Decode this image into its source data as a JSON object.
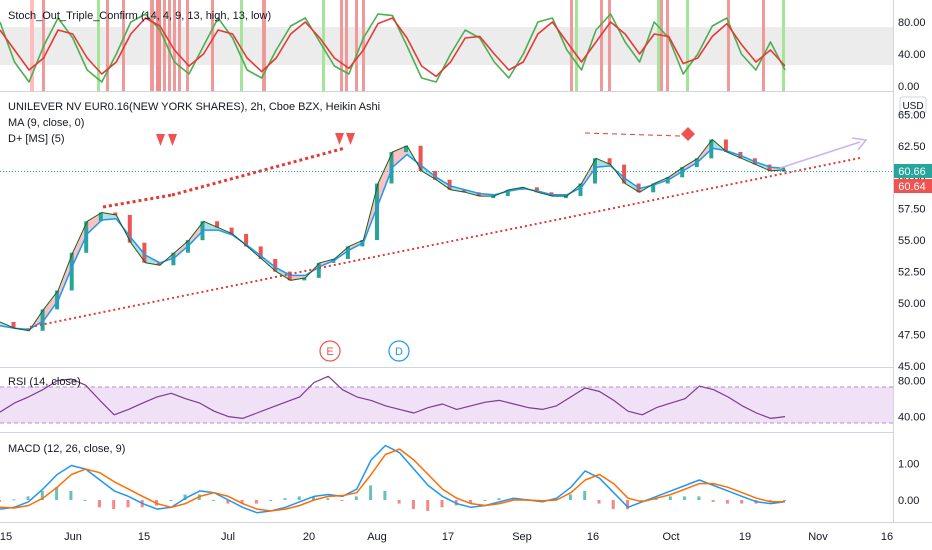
{
  "header": {
    "symbol_line": "UNILEVER NV EUR0.16(NEW YORK SHARES), 2h, Cboe BZX, Heikin Ashi",
    "currency": "USD"
  },
  "indicators": {
    "stoch": "Stoch_Out_Triple_Confirm (14, 4, 9, 13, high, 13, low)",
    "ma": "MA (9, close, 0)",
    "dplus": "D+ [MS] (5)",
    "rsi": "RSI (14, close)",
    "macd": "MACD (12, 26, close, 9)"
  },
  "markers": {
    "e": "E",
    "d": "D"
  },
  "colors": {
    "up": "#ef5350",
    "down": "#26a69a",
    "ma": "#2196f3",
    "stoch_k": "#4caf50",
    "stoch_d": "#e53935",
    "rsi": "#7e3b8f",
    "trend": "#e53935",
    "projection": "#c8b4f0",
    "last_price_bg": "#26a69a",
    "other_price_bg": "#ef5350"
  },
  "chart_data": [
    {
      "type": "line",
      "title": "Stoch_Out_Triple_Confirm (14, 4, 9, 13, high, 13, low)",
      "y_ticks": [
        "80.00",
        "40.00",
        "0.00"
      ],
      "ylim": [
        -5,
        100
      ],
      "series": [
        {
          "values": [
            80,
            30,
            5,
            50,
            85,
            60,
            20,
            5,
            40,
            80,
            90,
            70,
            30,
            15,
            50,
            85,
            60,
            20,
            10,
            45,
            75,
            85,
            55,
            25,
            15,
            60,
            90,
            88,
            50,
            10,
            5,
            40,
            70,
            60,
            30,
            10,
            40,
            80,
            85,
            45,
            20,
            70,
            90,
            55,
            30,
            80,
            60,
            15,
            40,
            75,
            85,
            40,
            20,
            55,
            20
          ]
        },
        {
          "values": [
            70,
            45,
            20,
            35,
            70,
            65,
            35,
            15,
            30,
            65,
            85,
            75,
            45,
            25,
            40,
            70,
            65,
            35,
            18,
            35,
            65,
            80,
            60,
            35,
            22,
            45,
            78,
            85,
            60,
            25,
            12,
            30,
            60,
            62,
            40,
            20,
            30,
            65,
            80,
            55,
            30,
            55,
            80,
            65,
            40,
            65,
            62,
            28,
            35,
            62,
            78,
            52,
            30,
            45,
            25
          ]
        }
      ]
    },
    {
      "type": "line",
      "title": "UNILEVER NV EUR0.16(NEW YORK SHARES), 2h, Cboe BZX, Heikin Ashi",
      "ylabel": "USD",
      "y_ticks": [
        "65.00",
        "62.50",
        "60.00",
        "57.50",
        "55.00",
        "52.50",
        "50.00",
        "47.50",
        "45.00"
      ],
      "ylim": [
        45,
        65.5
      ],
      "x_ticks": [
        "15",
        "Jun",
        "15",
        "Jul",
        "20",
        "Aug",
        "17",
        "Sep",
        "16",
        "Oct",
        "19",
        "Nov",
        "16"
      ],
      "series": [
        {
          "values": [
            48.5,
            48.0,
            47.8,
            49.5,
            51.0,
            54.0,
            56.5,
            57.2,
            57.0,
            54.8,
            53.2,
            53.0,
            54.0,
            55.0,
            56.5,
            56.0,
            55.5,
            54.5,
            53.5,
            52.5,
            51.8,
            52.0,
            53.2,
            53.5,
            54.5,
            55.0,
            59.5,
            62.0,
            62.5,
            60.5,
            59.8,
            59.0,
            58.8,
            58.5,
            58.5,
            59.0,
            59.2,
            58.8,
            58.5,
            58.5,
            59.5,
            61.5,
            61.0,
            59.5,
            58.8,
            59.5,
            60.0,
            60.8,
            61.5,
            63.0,
            62.0,
            61.5,
            61.0,
            60.5,
            60.6
          ]
        },
        {
          "name": "MA (9, close, 0)",
          "values": [
            48.2,
            48.0,
            47.9,
            48.6,
            50.2,
            53.0,
            55.5,
            56.6,
            56.7,
            55.2,
            53.8,
            53.2,
            53.6,
            54.6,
            55.8,
            55.8,
            55.4,
            54.6,
            53.7,
            52.8,
            52.2,
            52.2,
            52.9,
            53.4,
            54.2,
            54.8,
            57.8,
            60.8,
            61.8,
            60.9,
            60.0,
            59.3,
            59.0,
            58.7,
            58.6,
            58.9,
            59.1,
            58.9,
            58.6,
            58.6,
            59.2,
            60.8,
            60.9,
            59.9,
            59.1,
            59.4,
            59.8,
            60.5,
            61.2,
            62.3,
            62.1,
            61.7,
            61.2,
            60.8,
            60.7
          ]
        }
      ],
      "price_labels": [
        "60.66",
        "60.64"
      ]
    },
    {
      "type": "line",
      "title": "RSI (14, close)",
      "y_ticks": [
        "80.00",
        "40.00"
      ],
      "ylim": [
        25,
        92
      ],
      "series": [
        {
          "values": [
            45,
            55,
            62,
            70,
            80,
            82,
            75,
            58,
            42,
            48,
            55,
            62,
            66,
            60,
            55,
            46,
            40,
            38,
            44,
            50,
            56,
            62,
            78,
            85,
            70,
            62,
            58,
            52,
            48,
            44,
            50,
            54,
            48,
            52,
            56,
            58,
            54,
            50,
            48,
            52,
            62,
            72,
            68,
            58,
            46,
            42,
            50,
            55,
            60,
            74,
            70,
            62,
            52,
            44,
            38,
            40
          ]
        }
      ]
    },
    {
      "type": "line",
      "title": "MACD (12, 26, close, 9)",
      "y_ticks": [
        "1.00",
        "0.00"
      ],
      "ylim": [
        -0.55,
        1.65
      ],
      "series": [
        {
          "values": [
            -0.25,
            -0.2,
            -0.05,
            0.3,
            0.7,
            0.95,
            0.85,
            0.55,
            0.25,
            0.1,
            -0.1,
            -0.25,
            -0.2,
            0.05,
            0.25,
            0.2,
            0.0,
            -0.2,
            -0.35,
            -0.3,
            -0.2,
            -0.05,
            0.1,
            0.15,
            0.1,
            0.3,
            1.1,
            1.5,
            1.3,
            0.85,
            0.4,
            0.1,
            -0.1,
            -0.2,
            -0.15,
            -0.05,
            0.05,
            0.0,
            -0.05,
            0.05,
            0.35,
            0.8,
            0.6,
            0.2,
            -0.2,
            -0.05,
            0.1,
            0.25,
            0.4,
            0.55,
            0.4,
            0.25,
            0.1,
            -0.05,
            -0.1,
            -0.05
          ]
        },
        {
          "values": [
            -0.2,
            -0.22,
            -0.15,
            0.05,
            0.35,
            0.7,
            0.85,
            0.75,
            0.5,
            0.3,
            0.1,
            -0.1,
            -0.2,
            -0.1,
            0.1,
            0.2,
            0.1,
            -0.1,
            -0.25,
            -0.3,
            -0.25,
            -0.15,
            0.0,
            0.1,
            0.12,
            0.2,
            0.7,
            1.25,
            1.4,
            1.1,
            0.7,
            0.3,
            0.05,
            -0.1,
            -0.15,
            -0.1,
            0.0,
            0.0,
            -0.02,
            0.0,
            0.2,
            0.55,
            0.7,
            0.45,
            0.05,
            -0.05,
            0.05,
            0.15,
            0.3,
            0.45,
            0.45,
            0.35,
            0.2,
            0.05,
            -0.05,
            -0.05
          ]
        }
      ]
    }
  ]
}
